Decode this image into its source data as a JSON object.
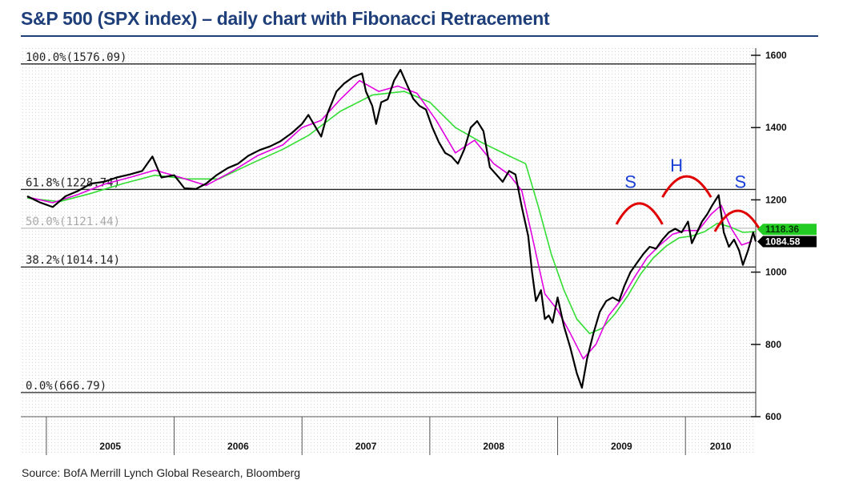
{
  "title": "S&P 500 (SPX index) – daily chart with Fibonacci Retracement",
  "source": "Source: BofA Merrill Lynch Global Research, Bloomberg",
  "chart_data": {
    "type": "line",
    "y_axis": {
      "range": [
        600,
        1620
      ],
      "ticks": [
        600,
        800,
        1000,
        1200,
        1400,
        1600
      ],
      "position": "right"
    },
    "x_axis": {
      "range": [
        2004.8,
        2010.55
      ],
      "labels": [
        "2005",
        "2006",
        "2007",
        "2008",
        "2009",
        "2010"
      ]
    },
    "grid": true,
    "fibonacci_levels": [
      {
        "label": "100.0%(1576.09)",
        "value": 1576.09
      },
      {
        "label": "61.8%(1228.74)",
        "value": 1228.74
      },
      {
        "label": "50.0%(1121.44)",
        "value": 1121.44
      },
      {
        "label": "38.2%(1014.14)",
        "value": 1014.14
      },
      {
        "label": "0.0%(666.79)",
        "value": 666.79
      }
    ],
    "price_tags": [
      {
        "label": "1118.36",
        "value": 1118.36,
        "color": "#22cc22"
      },
      {
        "label": "1084.58",
        "value": 1084.58,
        "color": "#000000"
      }
    ],
    "pattern_labels": [
      {
        "text": "S",
        "x": 2009.57,
        "y": 1233
      },
      {
        "text": "H",
        "x": 2009.93,
        "y": 1278
      },
      {
        "text": "S",
        "x": 2010.43,
        "y": 1233
      }
    ],
    "pattern_arcs": [
      {
        "x_start": 2009.46,
        "x_end": 2009.82,
        "peak": 1190,
        "color": "#e00000"
      },
      {
        "x_start": 2009.82,
        "x_end": 2010.2,
        "peak": 1265,
        "color": "#e00000"
      },
      {
        "x_start": 2010.23,
        "x_end": 2010.59,
        "peak": 1170,
        "color": "#e00000"
      }
    ],
    "series": [
      {
        "role": "price",
        "color": "#000000",
        "points": [
          [
            2004.85,
            1210
          ],
          [
            2004.95,
            1193
          ],
          [
            2005.05,
            1180
          ],
          [
            2005.15,
            1210
          ],
          [
            2005.25,
            1225
          ],
          [
            2005.35,
            1245
          ],
          [
            2005.45,
            1250
          ],
          [
            2005.55,
            1262
          ],
          [
            2005.65,
            1270
          ],
          [
            2005.75,
            1280
          ],
          [
            2005.83,
            1320
          ],
          [
            2005.9,
            1262
          ],
          [
            2006.0,
            1268
          ],
          [
            2006.08,
            1232
          ],
          [
            2006.17,
            1230
          ],
          [
            2006.25,
            1245
          ],
          [
            2006.33,
            1268
          ],
          [
            2006.42,
            1288
          ],
          [
            2006.5,
            1300
          ],
          [
            2006.58,
            1322
          ],
          [
            2006.67,
            1338
          ],
          [
            2006.75,
            1348
          ],
          [
            2006.83,
            1362
          ],
          [
            2006.92,
            1385
          ],
          [
            2007.0,
            1410
          ],
          [
            2007.05,
            1435
          ],
          [
            2007.1,
            1405
          ],
          [
            2007.15,
            1375
          ],
          [
            2007.2,
            1440
          ],
          [
            2007.27,
            1500
          ],
          [
            2007.33,
            1522
          ],
          [
            2007.4,
            1540
          ],
          [
            2007.47,
            1550
          ],
          [
            2007.5,
            1500
          ],
          [
            2007.55,
            1460
          ],
          [
            2007.58,
            1410
          ],
          [
            2007.62,
            1470
          ],
          [
            2007.67,
            1478
          ],
          [
            2007.72,
            1530
          ],
          [
            2007.77,
            1560
          ],
          [
            2007.82,
            1520
          ],
          [
            2007.87,
            1480
          ],
          [
            2007.92,
            1460
          ],
          [
            2007.97,
            1450
          ],
          [
            2008.02,
            1400
          ],
          [
            2008.07,
            1360
          ],
          [
            2008.12,
            1330
          ],
          [
            2008.17,
            1320
          ],
          [
            2008.22,
            1300
          ],
          [
            2008.27,
            1340
          ],
          [
            2008.32,
            1400
          ],
          [
            2008.37,
            1418
          ],
          [
            2008.42,
            1390
          ],
          [
            2008.47,
            1290
          ],
          [
            2008.52,
            1270
          ],
          [
            2008.57,
            1250
          ],
          [
            2008.62,
            1280
          ],
          [
            2008.67,
            1270
          ],
          [
            2008.72,
            1180
          ],
          [
            2008.77,
            1100
          ],
          [
            2008.8,
            1000
          ],
          [
            2008.83,
            920
          ],
          [
            2008.87,
            950
          ],
          [
            2008.9,
            870
          ],
          [
            2008.93,
            880
          ],
          [
            2008.96,
            860
          ],
          [
            2009.0,
            930
          ],
          [
            2009.05,
            850
          ],
          [
            2009.1,
            790
          ],
          [
            2009.15,
            720
          ],
          [
            2009.19,
            680
          ],
          [
            2009.23,
            760
          ],
          [
            2009.28,
            830
          ],
          [
            2009.33,
            890
          ],
          [
            2009.38,
            920
          ],
          [
            2009.43,
            930
          ],
          [
            2009.48,
            920
          ],
          [
            2009.52,
            960
          ],
          [
            2009.57,
            1000
          ],
          [
            2009.62,
            1025
          ],
          [
            2009.67,
            1050
          ],
          [
            2009.72,
            1070
          ],
          [
            2009.77,
            1065
          ],
          [
            2009.82,
            1090
          ],
          [
            2009.87,
            1110
          ],
          [
            2009.92,
            1120
          ],
          [
            2009.97,
            1110
          ],
          [
            2010.02,
            1140
          ],
          [
            2010.05,
            1080
          ],
          [
            2010.09,
            1110
          ],
          [
            2010.13,
            1140
          ],
          [
            2010.17,
            1160
          ],
          [
            2010.21,
            1185
          ],
          [
            2010.26,
            1213
          ],
          [
            2010.3,
            1110
          ],
          [
            2010.34,
            1070
          ],
          [
            2010.38,
            1090
          ],
          [
            2010.42,
            1060
          ],
          [
            2010.45,
            1020
          ],
          [
            2010.49,
            1060
          ],
          [
            2010.53,
            1110
          ],
          [
            2010.55,
            1085
          ]
        ]
      },
      {
        "role": "short moving average",
        "color": "#e000e0",
        "points": [
          [
            2004.85,
            1208
          ],
          [
            2005.05,
            1192
          ],
          [
            2005.25,
            1215
          ],
          [
            2005.45,
            1243
          ],
          [
            2005.65,
            1262
          ],
          [
            2005.85,
            1282
          ],
          [
            2006.05,
            1262
          ],
          [
            2006.25,
            1240
          ],
          [
            2006.45,
            1278
          ],
          [
            2006.65,
            1322
          ],
          [
            2006.85,
            1352
          ],
          [
            2007.0,
            1400
          ],
          [
            2007.15,
            1420
          ],
          [
            2007.3,
            1478
          ],
          [
            2007.45,
            1530
          ],
          [
            2007.6,
            1500
          ],
          [
            2007.75,
            1515
          ],
          [
            2007.9,
            1495
          ],
          [
            2008.05,
            1420
          ],
          [
            2008.2,
            1330
          ],
          [
            2008.35,
            1365
          ],
          [
            2008.5,
            1300
          ],
          [
            2008.62,
            1270
          ],
          [
            2008.72,
            1225
          ],
          [
            2008.8,
            1100
          ],
          [
            2008.9,
            940
          ],
          [
            2009.0,
            895
          ],
          [
            2009.1,
            830
          ],
          [
            2009.2,
            760
          ],
          [
            2009.3,
            800
          ],
          [
            2009.4,
            880
          ],
          [
            2009.5,
            925
          ],
          [
            2009.6,
            985
          ],
          [
            2009.7,
            1040
          ],
          [
            2009.8,
            1075
          ],
          [
            2009.9,
            1105
          ],
          [
            2010.0,
            1115
          ],
          [
            2010.1,
            1115
          ],
          [
            2010.2,
            1160
          ],
          [
            2010.28,
            1185
          ],
          [
            2010.36,
            1120
          ],
          [
            2010.44,
            1075
          ],
          [
            2010.52,
            1085
          ]
        ]
      },
      {
        "role": "long moving average",
        "color": "#33dd33",
        "points": [
          [
            2004.85,
            1205
          ],
          [
            2005.1,
            1195
          ],
          [
            2005.35,
            1218
          ],
          [
            2005.6,
            1245
          ],
          [
            2005.85,
            1268
          ],
          [
            2006.1,
            1258
          ],
          [
            2006.35,
            1258
          ],
          [
            2006.6,
            1300
          ],
          [
            2006.85,
            1340
          ],
          [
            2007.05,
            1378
          ],
          [
            2007.3,
            1445
          ],
          [
            2007.55,
            1490
          ],
          [
            2007.8,
            1500
          ],
          [
            2008.0,
            1470
          ],
          [
            2008.2,
            1400
          ],
          [
            2008.4,
            1360
          ],
          [
            2008.6,
            1325
          ],
          [
            2008.75,
            1300
          ],
          [
            2008.85,
            1180
          ],
          [
            2008.95,
            1050
          ],
          [
            2009.05,
            950
          ],
          [
            2009.15,
            870
          ],
          [
            2009.25,
            830
          ],
          [
            2009.35,
            845
          ],
          [
            2009.45,
            885
          ],
          [
            2009.55,
            935
          ],
          [
            2009.65,
            995
          ],
          [
            2009.75,
            1040
          ],
          [
            2009.85,
            1072
          ],
          [
            2009.95,
            1095
          ],
          [
            2010.05,
            1100
          ],
          [
            2010.15,
            1112
          ],
          [
            2010.25,
            1135
          ],
          [
            2010.35,
            1125
          ],
          [
            2010.45,
            1110
          ],
          [
            2010.55,
            1112
          ]
        ]
      }
    ]
  }
}
